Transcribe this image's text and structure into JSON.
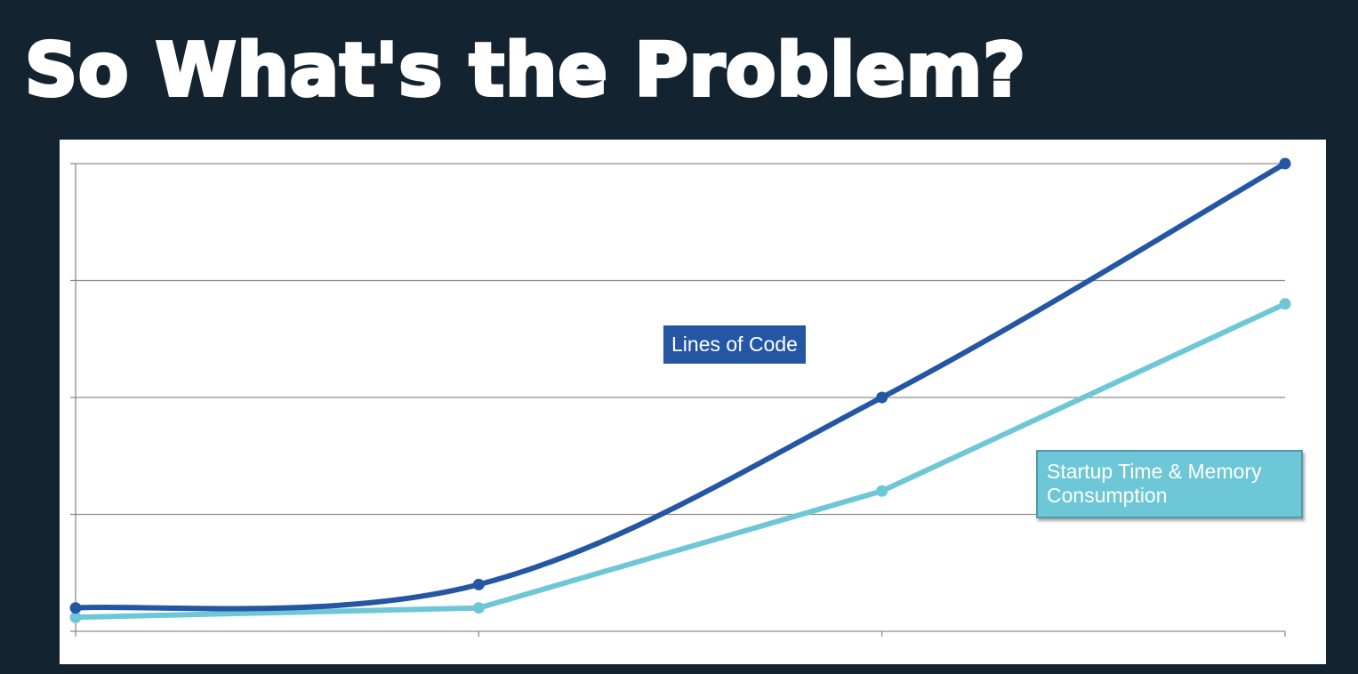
{
  "slide": {
    "title": "So What's the Problem?"
  },
  "colors": {
    "background": "#13232f",
    "lines_of_code": "#2456a4",
    "startup_memory": "#6ec7d6",
    "gridline": "#8c8c8c"
  },
  "chart_data": {
    "type": "line",
    "title": "",
    "xlabel": "",
    "ylabel": "",
    "x": [
      0,
      1,
      2,
      3
    ],
    "ylim": [
      0,
      4
    ],
    "grid": true,
    "legend": "inline labels",
    "series": [
      {
        "name": "Lines of Code",
        "values": [
          0.2,
          0.4,
          2.0,
          4.0
        ],
        "color": "#2456a4"
      },
      {
        "name": "Startup Time & Memory Consumption",
        "values": [
          0.12,
          0.2,
          1.2,
          2.8
        ],
        "color": "#6ec7d6"
      }
    ]
  }
}
